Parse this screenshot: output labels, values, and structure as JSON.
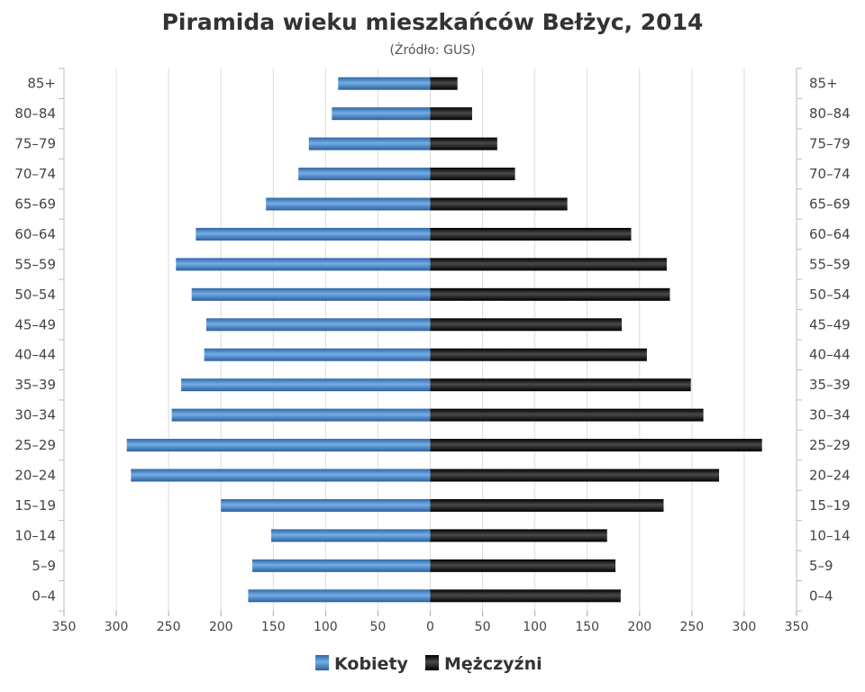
{
  "chart_data": {
    "type": "bar",
    "orientation": "horizontal",
    "title": "Piramida wieku mieszkańców Bełżyc, 2014",
    "subtitle": "(Źródło: GUS)",
    "categories": [
      "85+",
      "80–84",
      "75–79",
      "70–74",
      "65–69",
      "60–64",
      "55–59",
      "50–54",
      "45–49",
      "40–44",
      "35–39",
      "30–34",
      "25–29",
      "20–24",
      "15–19",
      "10–14",
      "5–9",
      "0–4"
    ],
    "series": [
      {
        "name": "Kobiety",
        "color": "#3f7fc4",
        "values": [
          88,
          94,
          116,
          126,
          157,
          224,
          243,
          228,
          214,
          216,
          238,
          247,
          290,
          286,
          200,
          152,
          170,
          174
        ]
      },
      {
        "name": "Mężczyźni",
        "color": "#111111",
        "values": [
          26,
          40,
          64,
          81,
          131,
          192,
          226,
          229,
          183,
          207,
          249,
          261,
          317,
          276,
          223,
          169,
          177,
          182
        ]
      }
    ],
    "xlim": [
      -350,
      350
    ],
    "x_ticks": [
      "350",
      "300",
      "250",
      "200",
      "150",
      "100",
      "50",
      "0",
      "50",
      "100",
      "150",
      "200",
      "250",
      "300",
      "350"
    ],
    "grid": true,
    "legend_position": "bottom-center"
  }
}
